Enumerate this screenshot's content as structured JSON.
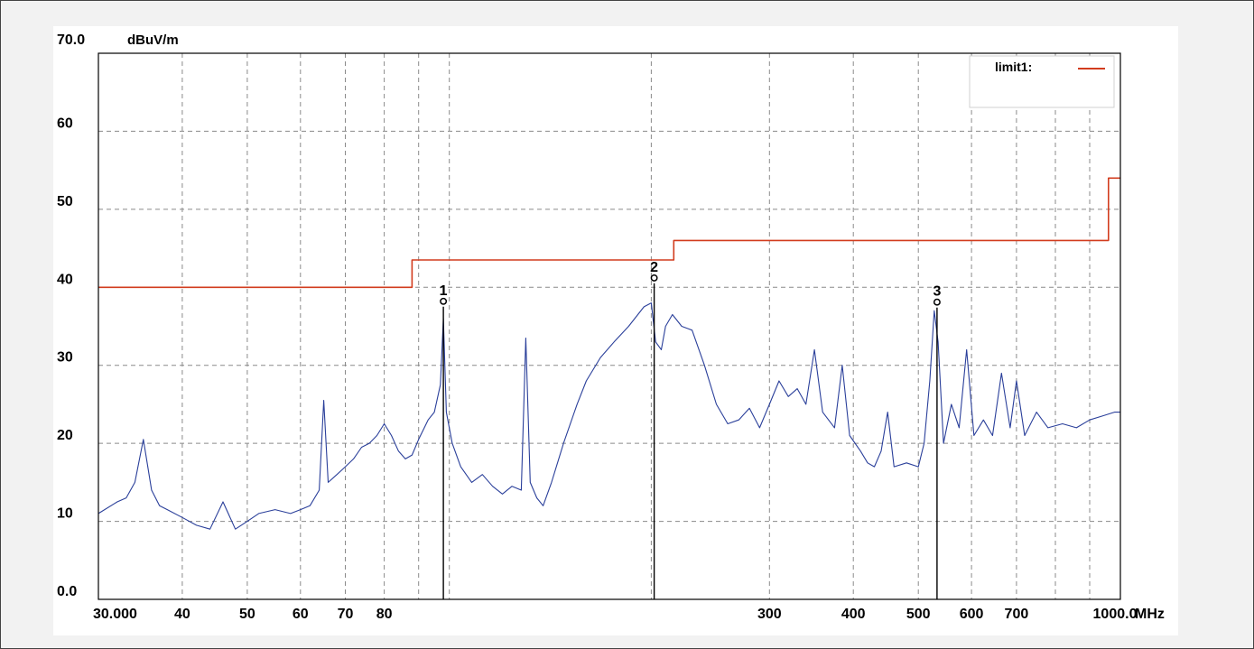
{
  "chart_data": {
    "type": "line",
    "title": "",
    "ylabel_unit": "dBuV/m",
    "xlabel_unit": "MHz",
    "x_scale": "log",
    "xlim": [
      30,
      1000
    ],
    "ylim": [
      0,
      70
    ],
    "grid": true,
    "legend_position": "top-right",
    "x_tick_labels": [
      {
        "v": 30,
        "label": "30.000"
      },
      {
        "v": 40,
        "label": "40"
      },
      {
        "v": 50,
        "label": "50"
      },
      {
        "v": 60,
        "label": "60"
      },
      {
        "v": 70,
        "label": "70"
      },
      {
        "v": 80,
        "label": "80"
      },
      {
        "v": 300,
        "label": "300"
      },
      {
        "v": 400,
        "label": "400"
      },
      {
        "v": 500,
        "label": "500"
      },
      {
        "v": 600,
        "label": "600"
      },
      {
        "v": 700,
        "label": "700"
      },
      {
        "v": 1000,
        "label": "1000.0"
      }
    ],
    "x_grid": [
      40,
      50,
      60,
      70,
      80,
      90,
      100,
      200,
      300,
      400,
      500,
      600,
      700,
      800,
      900
    ],
    "y_tick_labels": [
      {
        "v": 70,
        "label": "70.0"
      },
      {
        "v": 60,
        "label": "60"
      },
      {
        "v": 50,
        "label": "50"
      },
      {
        "v": 40,
        "label": "40"
      },
      {
        "v": 30,
        "label": "30"
      },
      {
        "v": 20,
        "label": "20"
      },
      {
        "v": 10,
        "label": "10"
      },
      {
        "v": 0,
        "label": "0.0"
      }
    ],
    "series": [
      {
        "name": "limit1:",
        "color": "#d23c1e",
        "points": [
          [
            30,
            40
          ],
          [
            88,
            40
          ],
          [
            88,
            43.5
          ],
          [
            216,
            43.5
          ],
          [
            216,
            46
          ],
          [
            960,
            46
          ],
          [
            960,
            54
          ],
          [
            1000,
            54
          ]
        ]
      },
      {
        "color": "#2a3f9a",
        "points": [
          [
            30,
            11
          ],
          [
            32,
            12.5
          ],
          [
            33,
            13
          ],
          [
            34,
            15
          ],
          [
            35,
            20.5
          ],
          [
            36,
            14
          ],
          [
            37,
            12
          ],
          [
            38,
            11.5
          ],
          [
            40,
            10.5
          ],
          [
            42,
            9.5
          ],
          [
            44,
            9
          ],
          [
            46,
            12.5
          ],
          [
            48,
            9
          ],
          [
            50,
            10
          ],
          [
            52,
            11
          ],
          [
            55,
            11.5
          ],
          [
            58,
            11
          ],
          [
            60,
            11.5
          ],
          [
            62,
            12
          ],
          [
            64,
            14
          ],
          [
            65,
            25.5
          ],
          [
            66,
            15
          ],
          [
            68,
            16
          ],
          [
            70,
            17
          ],
          [
            72,
            18
          ],
          [
            74,
            19.5
          ],
          [
            76,
            20
          ],
          [
            78,
            21
          ],
          [
            80,
            22.5
          ],
          [
            82,
            21
          ],
          [
            84,
            19
          ],
          [
            86,
            18
          ],
          [
            88,
            18.5
          ],
          [
            90,
            20.5
          ],
          [
            93,
            23
          ],
          [
            95,
            24
          ],
          [
            97,
            27.5
          ],
          [
            98,
            36
          ],
          [
            99,
            24
          ],
          [
            101,
            20
          ],
          [
            104,
            17
          ],
          [
            108,
            15
          ],
          [
            112,
            16
          ],
          [
            116,
            14.5
          ],
          [
            120,
            13.5
          ],
          [
            124,
            14.5
          ],
          [
            128,
            14
          ],
          [
            130,
            33.5
          ],
          [
            132,
            15
          ],
          [
            135,
            13
          ],
          [
            138,
            12
          ],
          [
            142,
            15
          ],
          [
            148,
            20
          ],
          [
            155,
            25
          ],
          [
            160,
            28
          ],
          [
            168,
            31
          ],
          [
            176,
            33
          ],
          [
            185,
            35
          ],
          [
            195,
            37.5
          ],
          [
            200,
            38
          ],
          [
            203,
            33
          ],
          [
            207,
            32
          ],
          [
            210,
            35
          ],
          [
            215,
            36.5
          ],
          [
            222,
            35
          ],
          [
            230,
            34.5
          ],
          [
            240,
            30
          ],
          [
            250,
            25
          ],
          [
            260,
            22.5
          ],
          [
            270,
            23
          ],
          [
            280,
            24.5
          ],
          [
            290,
            22
          ],
          [
            300,
            25
          ],
          [
            310,
            28
          ],
          [
            320,
            26
          ],
          [
            330,
            27
          ],
          [
            340,
            25
          ],
          [
            350,
            32
          ],
          [
            360,
            24
          ],
          [
            375,
            22
          ],
          [
            385,
            30
          ],
          [
            395,
            21
          ],
          [
            410,
            19
          ],
          [
            420,
            17.5
          ],
          [
            430,
            17
          ],
          [
            440,
            19
          ],
          [
            450,
            24
          ],
          [
            460,
            17
          ],
          [
            480,
            17.5
          ],
          [
            500,
            17
          ],
          [
            510,
            20
          ],
          [
            520,
            28
          ],
          [
            528,
            37
          ],
          [
            535,
            33
          ],
          [
            545,
            20
          ],
          [
            560,
            25
          ],
          [
            575,
            22
          ],
          [
            590,
            32
          ],
          [
            605,
            21
          ],
          [
            625,
            23
          ],
          [
            645,
            21
          ],
          [
            665,
            29
          ],
          [
            685,
            22
          ],
          [
            700,
            28
          ],
          [
            720,
            21
          ],
          [
            750,
            24
          ],
          [
            780,
            22
          ],
          [
            820,
            22.5
          ],
          [
            860,
            22
          ],
          [
            900,
            23
          ],
          [
            940,
            23.5
          ],
          [
            980,
            24
          ],
          [
            1000,
            24
          ]
        ]
      }
    ],
    "markers": [
      {
        "label": "1",
        "freq": 98,
        "level": 38.2,
        "base_level": 28
      },
      {
        "label": "2",
        "freq": 202,
        "level": 41.2,
        "base_level": 29
      },
      {
        "label": "3",
        "freq": 533,
        "level": 38.1,
        "base_level": 32
      }
    ],
    "legend": {
      "label": "limit1:",
      "color": "#d23c1e"
    }
  }
}
